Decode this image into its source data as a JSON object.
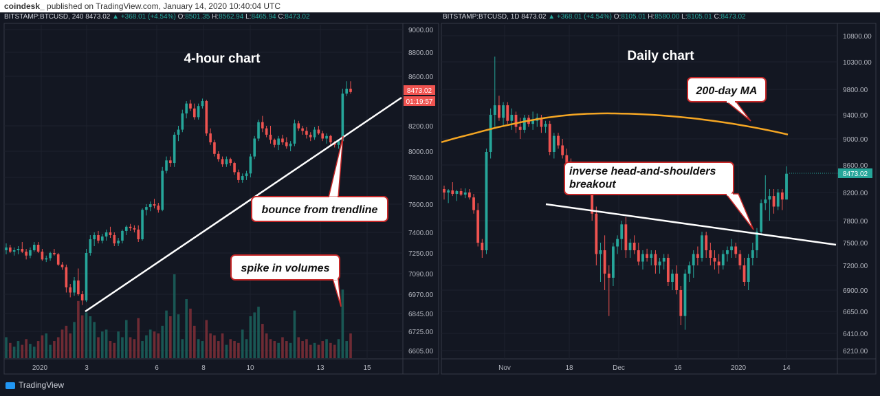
{
  "header": {
    "author": "coindesk_",
    "published": "published on TradingView.com, January 14, 2020 10:40:04 UTC"
  },
  "footer": {
    "logo_text": "TradingView"
  },
  "colors": {
    "up": "#26a69a",
    "down": "#ef5350",
    "bg": "#131722",
    "ma": "#f5a623"
  },
  "chart_data": [
    {
      "type": "candlestick",
      "title": "4-hour chart",
      "header": {
        "symbol": "BITSTAMP:BTCUSD, 240",
        "last": "8473.02",
        "change": "+368.01 (+4.54%)",
        "o": "8501.35",
        "h": "8562.94",
        "l": "8465.94",
        "c": "8473.02"
      },
      "y_ticks": [
        "9000.00",
        "8800.00",
        "8600.00",
        "8200.00",
        "8000.00",
        "7800.00",
        "7600.00",
        "7400.00",
        "7250.00",
        "7090.00",
        "6970.00",
        "6845.00",
        "6725.00",
        "6605.00"
      ],
      "x_ticks": [
        "2020",
        "3",
        "6",
        "8",
        "10",
        "13",
        "15"
      ],
      "price_label": "8473.02",
      "countdown_label": "01:19:57",
      "annotations": [
        "bounce from trendline",
        "spike in volumes"
      ],
      "candles": [
        [
          7270,
          7320,
          7240,
          7290
        ],
        [
          7290,
          7310,
          7250,
          7260
        ],
        [
          7260,
          7290,
          7230,
          7270
        ],
        [
          7270,
          7300,
          7240,
          7280
        ],
        [
          7280,
          7330,
          7250,
          7260
        ],
        [
          7260,
          7280,
          7200,
          7230
        ],
        [
          7230,
          7290,
          7210,
          7270
        ],
        [
          7270,
          7330,
          7260,
          7310
        ],
        [
          7310,
          7330,
          7250,
          7260
        ],
        [
          7260,
          7280,
          7190,
          7200
        ],
        [
          7200,
          7230,
          7180,
          7210
        ],
        [
          7210,
          7260,
          7190,
          7250
        ],
        [
          7250,
          7280,
          7230,
          7240
        ],
        [
          7240,
          7250,
          7150,
          7160
        ],
        [
          7160,
          7180,
          7120,
          7140
        ],
        [
          7140,
          7160,
          6980,
          7010
        ],
        [
          7010,
          7030,
          6950,
          6980
        ],
        [
          6980,
          7070,
          6960,
          7050
        ],
        [
          7050,
          7130,
          6960,
          6970
        ],
        [
          6970,
          6990,
          6900,
          6930
        ],
        [
          6930,
          7280,
          6920,
          7250
        ],
        [
          7250,
          7380,
          7230,
          7350
        ],
        [
          7350,
          7400,
          7300,
          7380
        ],
        [
          7380,
          7410,
          7320,
          7340
        ],
        [
          7340,
          7390,
          7320,
          7370
        ],
        [
          7370,
          7420,
          7340,
          7400
        ],
        [
          7400,
          7440,
          7360,
          7380
        ],
        [
          7380,
          7400,
          7300,
          7320
        ],
        [
          7320,
          7360,
          7300,
          7340
        ],
        [
          7340,
          7420,
          7320,
          7410
        ],
        [
          7410,
          7450,
          7380,
          7440
        ],
        [
          7440,
          7460,
          7410,
          7430
        ],
        [
          7430,
          7450,
          7400,
          7420
        ],
        [
          7420,
          7450,
          7330,
          7350
        ],
        [
          7350,
          7570,
          7340,
          7560
        ],
        [
          7560,
          7600,
          7520,
          7580
        ],
        [
          7580,
          7620,
          7550,
          7600
        ],
        [
          7600,
          7640,
          7570,
          7590
        ],
        [
          7590,
          7610,
          7540,
          7560
        ],
        [
          7560,
          7880,
          7550,
          7850
        ],
        [
          7850,
          7960,
          7830,
          7930
        ],
        [
          7930,
          7960,
          7880,
          7910
        ],
        [
          7910,
          8150,
          7880,
          8130
        ],
        [
          8130,
          8200,
          8080,
          8170
        ],
        [
          8170,
          8330,
          8150,
          8300
        ],
        [
          8300,
          8400,
          8260,
          8380
        ],
        [
          8380,
          8410,
          8320,
          8340
        ],
        [
          8340,
          8380,
          8250,
          8270
        ],
        [
          8270,
          8380,
          8250,
          8360
        ],
        [
          8360,
          8420,
          8340,
          8400
        ],
        [
          8400,
          8410,
          8120,
          8140
        ],
        [
          8140,
          8180,
          8050,
          8070
        ],
        [
          8070,
          8090,
          7960,
          7980
        ],
        [
          7980,
          8000,
          7920,
          7940
        ],
        [
          7940,
          7960,
          7880,
          7900
        ],
        [
          7900,
          7960,
          7880,
          7940
        ],
        [
          7940,
          7950,
          7890,
          7910
        ],
        [
          7910,
          7920,
          7820,
          7840
        ],
        [
          7840,
          7860,
          7760,
          7780
        ],
        [
          7780,
          7830,
          7760,
          7810
        ],
        [
          7810,
          7850,
          7780,
          7830
        ],
        [
          7830,
          7980,
          7800,
          7960
        ],
        [
          7960,
          8120,
          7940,
          8100
        ],
        [
          8100,
          8250,
          8080,
          8230
        ],
        [
          8230,
          8280,
          8150,
          8180
        ],
        [
          8180,
          8200,
          8110,
          8130
        ],
        [
          8130,
          8200,
          8060,
          8090
        ],
        [
          8090,
          8100,
          8030,
          8050
        ],
        [
          8050,
          8120,
          8010,
          8100
        ],
        [
          8100,
          8130,
          8050,
          8070
        ],
        [
          8070,
          8110,
          8020,
          8040
        ],
        [
          8040,
          8080,
          8000,
          8060
        ],
        [
          8060,
          8250,
          8040,
          8220
        ],
        [
          8220,
          8240,
          8160,
          8180
        ],
        [
          8180,
          8200,
          8130,
          8160
        ],
        [
          8160,
          8190,
          8100,
          8130
        ],
        [
          8130,
          8150,
          8080,
          8110
        ],
        [
          8110,
          8190,
          8090,
          8170
        ],
        [
          8170,
          8200,
          8130,
          8140
        ],
        [
          8140,
          8160,
          8080,
          8100
        ],
        [
          8100,
          8140,
          8060,
          8120
        ],
        [
          8120,
          8130,
          8050,
          8070
        ],
        [
          8070,
          8080,
          8030,
          8050
        ],
        [
          8050,
          8090,
          8020,
          8080
        ],
        [
          8080,
          8500,
          8070,
          8460
        ],
        [
          8460,
          8560,
          8440,
          8500
        ],
        [
          8500,
          8560,
          8460,
          8473
        ]
      ],
      "volumes": [
        22,
        16,
        12,
        18,
        14,
        20,
        15,
        12,
        18,
        24,
        26,
        14,
        18,
        22,
        30,
        34,
        26,
        38,
        60,
        45,
        48,
        44,
        38,
        22,
        28,
        30,
        18,
        16,
        28,
        22,
        40,
        22,
        20,
        42,
        18,
        24,
        30,
        28,
        26,
        34,
        50,
        44,
        88,
        46,
        20,
        62,
        52,
        34,
        20,
        18,
        40,
        26,
        24,
        18,
        26,
        14,
        20,
        18,
        16,
        30,
        20,
        44,
        48,
        54,
        36,
        26,
        20,
        18,
        16,
        22,
        18,
        16,
        50,
        22,
        18,
        20,
        14,
        16,
        14,
        18,
        20,
        16,
        14,
        20,
        72,
        18,
        26
      ]
    },
    {
      "type": "candlestick",
      "title": "Daily chart",
      "header": {
        "symbol": "BITSTAMP:BTCUSD, 1D",
        "last": "8473.02",
        "change": "+368.01 (+4.54%)",
        "o": "8105.01",
        "h": "8580.00",
        "l": "8105.01",
        "c": "8473.02"
      },
      "y_ticks": [
        "10800.00",
        "10300.00",
        "9800.00",
        "9400.00",
        "9000.00",
        "8600.00",
        "8200.00",
        "7800.00",
        "7500.00",
        "7200.00",
        "6900.00",
        "6650.00",
        "6410.00",
        "6210.00"
      ],
      "x_ticks": [
        "Nov",
        "18",
        "Dec",
        "16",
        "2020",
        "14"
      ],
      "price_label": "8473.02",
      "annotations": [
        "200-day MA",
        "inverse head-and-shoulders breakout"
      ],
      "candles": [
        [
          8250,
          8300,
          8100,
          8200
        ],
        [
          8200,
          8250,
          8050,
          8230
        ],
        [
          8230,
          8350,
          8150,
          8180
        ],
        [
          8180,
          8240,
          8080,
          8220
        ],
        [
          8220,
          8260,
          8150,
          8170
        ],
        [
          8170,
          8260,
          8120,
          8200
        ],
        [
          8200,
          8250,
          8100,
          8130
        ],
        [
          8130,
          8180,
          7900,
          7950
        ],
        [
          7950,
          8050,
          7450,
          7500
        ],
        [
          7500,
          7550,
          7300,
          7400
        ],
        [
          7400,
          8850,
          7350,
          8800
        ],
        [
          8800,
          9500,
          8700,
          9400
        ],
        [
          9400,
          10400,
          9200,
          9550
        ],
        [
          9550,
          9700,
          9300,
          9350
        ],
        [
          9350,
          9600,
          9200,
          9550
        ],
        [
          9550,
          9600,
          9250,
          9300
        ],
        [
          9300,
          9500,
          9150,
          9400
        ],
        [
          9400,
          9450,
          9100,
          9200
        ],
        [
          9200,
          9350,
          9000,
          9150
        ],
        [
          9150,
          9400,
          9100,
          9350
        ],
        [
          9350,
          9400,
          9200,
          9250
        ],
        [
          9250,
          9450,
          9150,
          9300
        ],
        [
          9300,
          9420,
          9200,
          9350
        ],
        [
          9350,
          9400,
          9100,
          9200
        ],
        [
          9200,
          9300,
          9100,
          9250
        ],
        [
          9250,
          9300,
          8750,
          8800
        ],
        [
          8800,
          9100,
          8700,
          9050
        ],
        [
          9050,
          9100,
          8850,
          8900
        ],
        [
          8900,
          9000,
          8700,
          8750
        ],
        [
          8750,
          8850,
          8550,
          8600
        ],
        [
          8600,
          8700,
          8450,
          8550
        ],
        [
          8550,
          8650,
          8400,
          8500
        ],
        [
          8500,
          8550,
          8300,
          8420
        ],
        [
          8420,
          8500,
          8300,
          8450
        ],
        [
          8450,
          8500,
          8300,
          8350
        ],
        [
          8350,
          8400,
          7800,
          7900
        ],
        [
          7900,
          8000,
          7200,
          7350
        ],
        [
          7350,
          7500,
          7000,
          7400
        ],
        [
          7400,
          7600,
          6900,
          7100
        ],
        [
          7100,
          7200,
          6600,
          7050
        ],
        [
          7050,
          7500,
          6950,
          7450
        ],
        [
          7450,
          7600,
          7350,
          7550
        ],
        [
          7550,
          7800,
          7400,
          7750
        ],
        [
          7750,
          7850,
          7300,
          7400
        ],
        [
          7400,
          7550,
          7300,
          7500
        ],
        [
          7500,
          7600,
          7350,
          7400
        ],
        [
          7400,
          7500,
          7200,
          7250
        ],
        [
          7250,
          7400,
          7150,
          7350
        ],
        [
          7350,
          7420,
          7250,
          7300
        ],
        [
          7300,
          7400,
          7200,
          7350
        ],
        [
          7350,
          7400,
          7100,
          7200
        ],
        [
          7200,
          7300,
          7100,
          7250
        ],
        [
          7250,
          7350,
          7150,
          7300
        ],
        [
          7300,
          7350,
          6950,
          7000
        ],
        [
          7000,
          7150,
          6900,
          7100
        ],
        [
          7100,
          7200,
          6850,
          6900
        ],
        [
          6900,
          6950,
          6500,
          6600
        ],
        [
          6600,
          7150,
          6450,
          7100
        ],
        [
          7100,
          7250,
          7000,
          7200
        ],
        [
          7200,
          7400,
          7050,
          7350
        ],
        [
          7350,
          7450,
          7200,
          7300
        ],
        [
          7300,
          7650,
          7250,
          7600
        ],
        [
          7600,
          7650,
          7300,
          7400
        ],
        [
          7400,
          7500,
          7200,
          7300
        ],
        [
          7300,
          7400,
          7150,
          7250
        ],
        [
          7250,
          7350,
          7100,
          7200
        ],
        [
          7200,
          7400,
          7150,
          7350
        ],
        [
          7350,
          7450,
          7250,
          7400
        ],
        [
          7400,
          7550,
          7300,
          7450
        ],
        [
          7450,
          7500,
          7300,
          7350
        ],
        [
          7350,
          7400,
          7150,
          7200
        ],
        [
          7200,
          7300,
          6950,
          7000
        ],
        [
          7000,
          7350,
          6900,
          7300
        ],
        [
          7300,
          7500,
          7200,
          7400
        ],
        [
          7400,
          7700,
          7300,
          7650
        ],
        [
          7650,
          8100,
          7600,
          8050
        ],
        [
          8050,
          8450,
          7950,
          8100
        ],
        [
          8100,
          8250,
          7800,
          8150
        ],
        [
          8150,
          8250,
          7900,
          8000
        ],
        [
          8000,
          8250,
          7950,
          8200
        ],
        [
          8200,
          8250,
          7950,
          8100
        ],
        [
          8100,
          8580,
          8100,
          8473
        ]
      ],
      "ma_200": [
        8950,
        8980,
        9010,
        9040,
        9070,
        9100,
        9130,
        9160,
        9190,
        9215,
        9240,
        9265,
        9290,
        9310,
        9330,
        9350,
        9365,
        9380,
        9392,
        9402,
        9410,
        9416,
        9420,
        9422,
        9423,
        9422,
        9420,
        9417,
        9413,
        9408,
        9402,
        9395,
        9387,
        9378,
        9368,
        9357,
        9345,
        9332,
        9318,
        9303,
        9287,
        9270,
        9252,
        9233,
        9213,
        9192,
        9170,
        9147,
        9123,
        9098,
        9072
      ]
    }
  ]
}
